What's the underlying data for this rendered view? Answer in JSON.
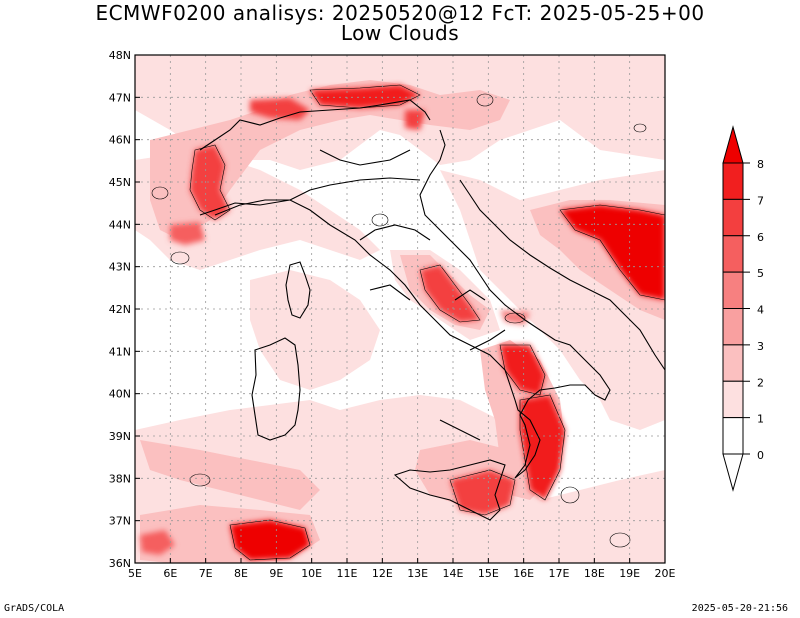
{
  "title": {
    "line1": "ECMWF0200 analisys: 20250520@12 FcT: 2025-05-25+00",
    "line2": "Low Clouds"
  },
  "footer": {
    "left": "GrADS/COLA",
    "right": "2025-05-20-21:56"
  },
  "map": {
    "lon_range": [
      5,
      20
    ],
    "lat_range": [
      36,
      48
    ],
    "lon_ticks": [
      "5E",
      "6E",
      "7E",
      "8E",
      "9E",
      "10E",
      "11E",
      "12E",
      "13E",
      "14E",
      "15E",
      "16E",
      "17E",
      "18E",
      "19E",
      "20E"
    ],
    "lat_ticks": [
      "36N",
      "37N",
      "38N",
      "39N",
      "40N",
      "41N",
      "42N",
      "43N",
      "44N",
      "45N",
      "46N",
      "47N",
      "48N"
    ],
    "grid": true
  },
  "colorbar": {
    "levels": [
      "0",
      "1",
      "2",
      "3",
      "4",
      "5",
      "6",
      "7",
      "8"
    ],
    "colors": [
      "#ffffff",
      "#fde0e0",
      "#fbc0c0",
      "#f9a0a0",
      "#f78080",
      "#f55f5f",
      "#f33f3f",
      "#f11f1f",
      "#ee0000"
    ]
  },
  "cloud_areas": [
    {
      "lon": 8.6,
      "lat": 36.6,
      "level": 7
    },
    {
      "lon": 6.9,
      "lat": 44.8,
      "level": 6
    },
    {
      "lon": 10.5,
      "lat": 46.6,
      "level": 5
    },
    {
      "lon": 12.3,
      "lat": 47.0,
      "level": 6
    },
    {
      "lon": 13.6,
      "lat": 42.4,
      "level": 6
    },
    {
      "lon": 16.2,
      "lat": 40.3,
      "level": 6
    },
    {
      "lon": 16.5,
      "lat": 38.8,
      "level": 7
    },
    {
      "lon": 15.1,
      "lat": 37.4,
      "level": 6
    },
    {
      "lon": 19.3,
      "lat": 43.5,
      "level": 7
    },
    {
      "lon": 6.0,
      "lat": 36.4,
      "level": 4
    }
  ]
}
